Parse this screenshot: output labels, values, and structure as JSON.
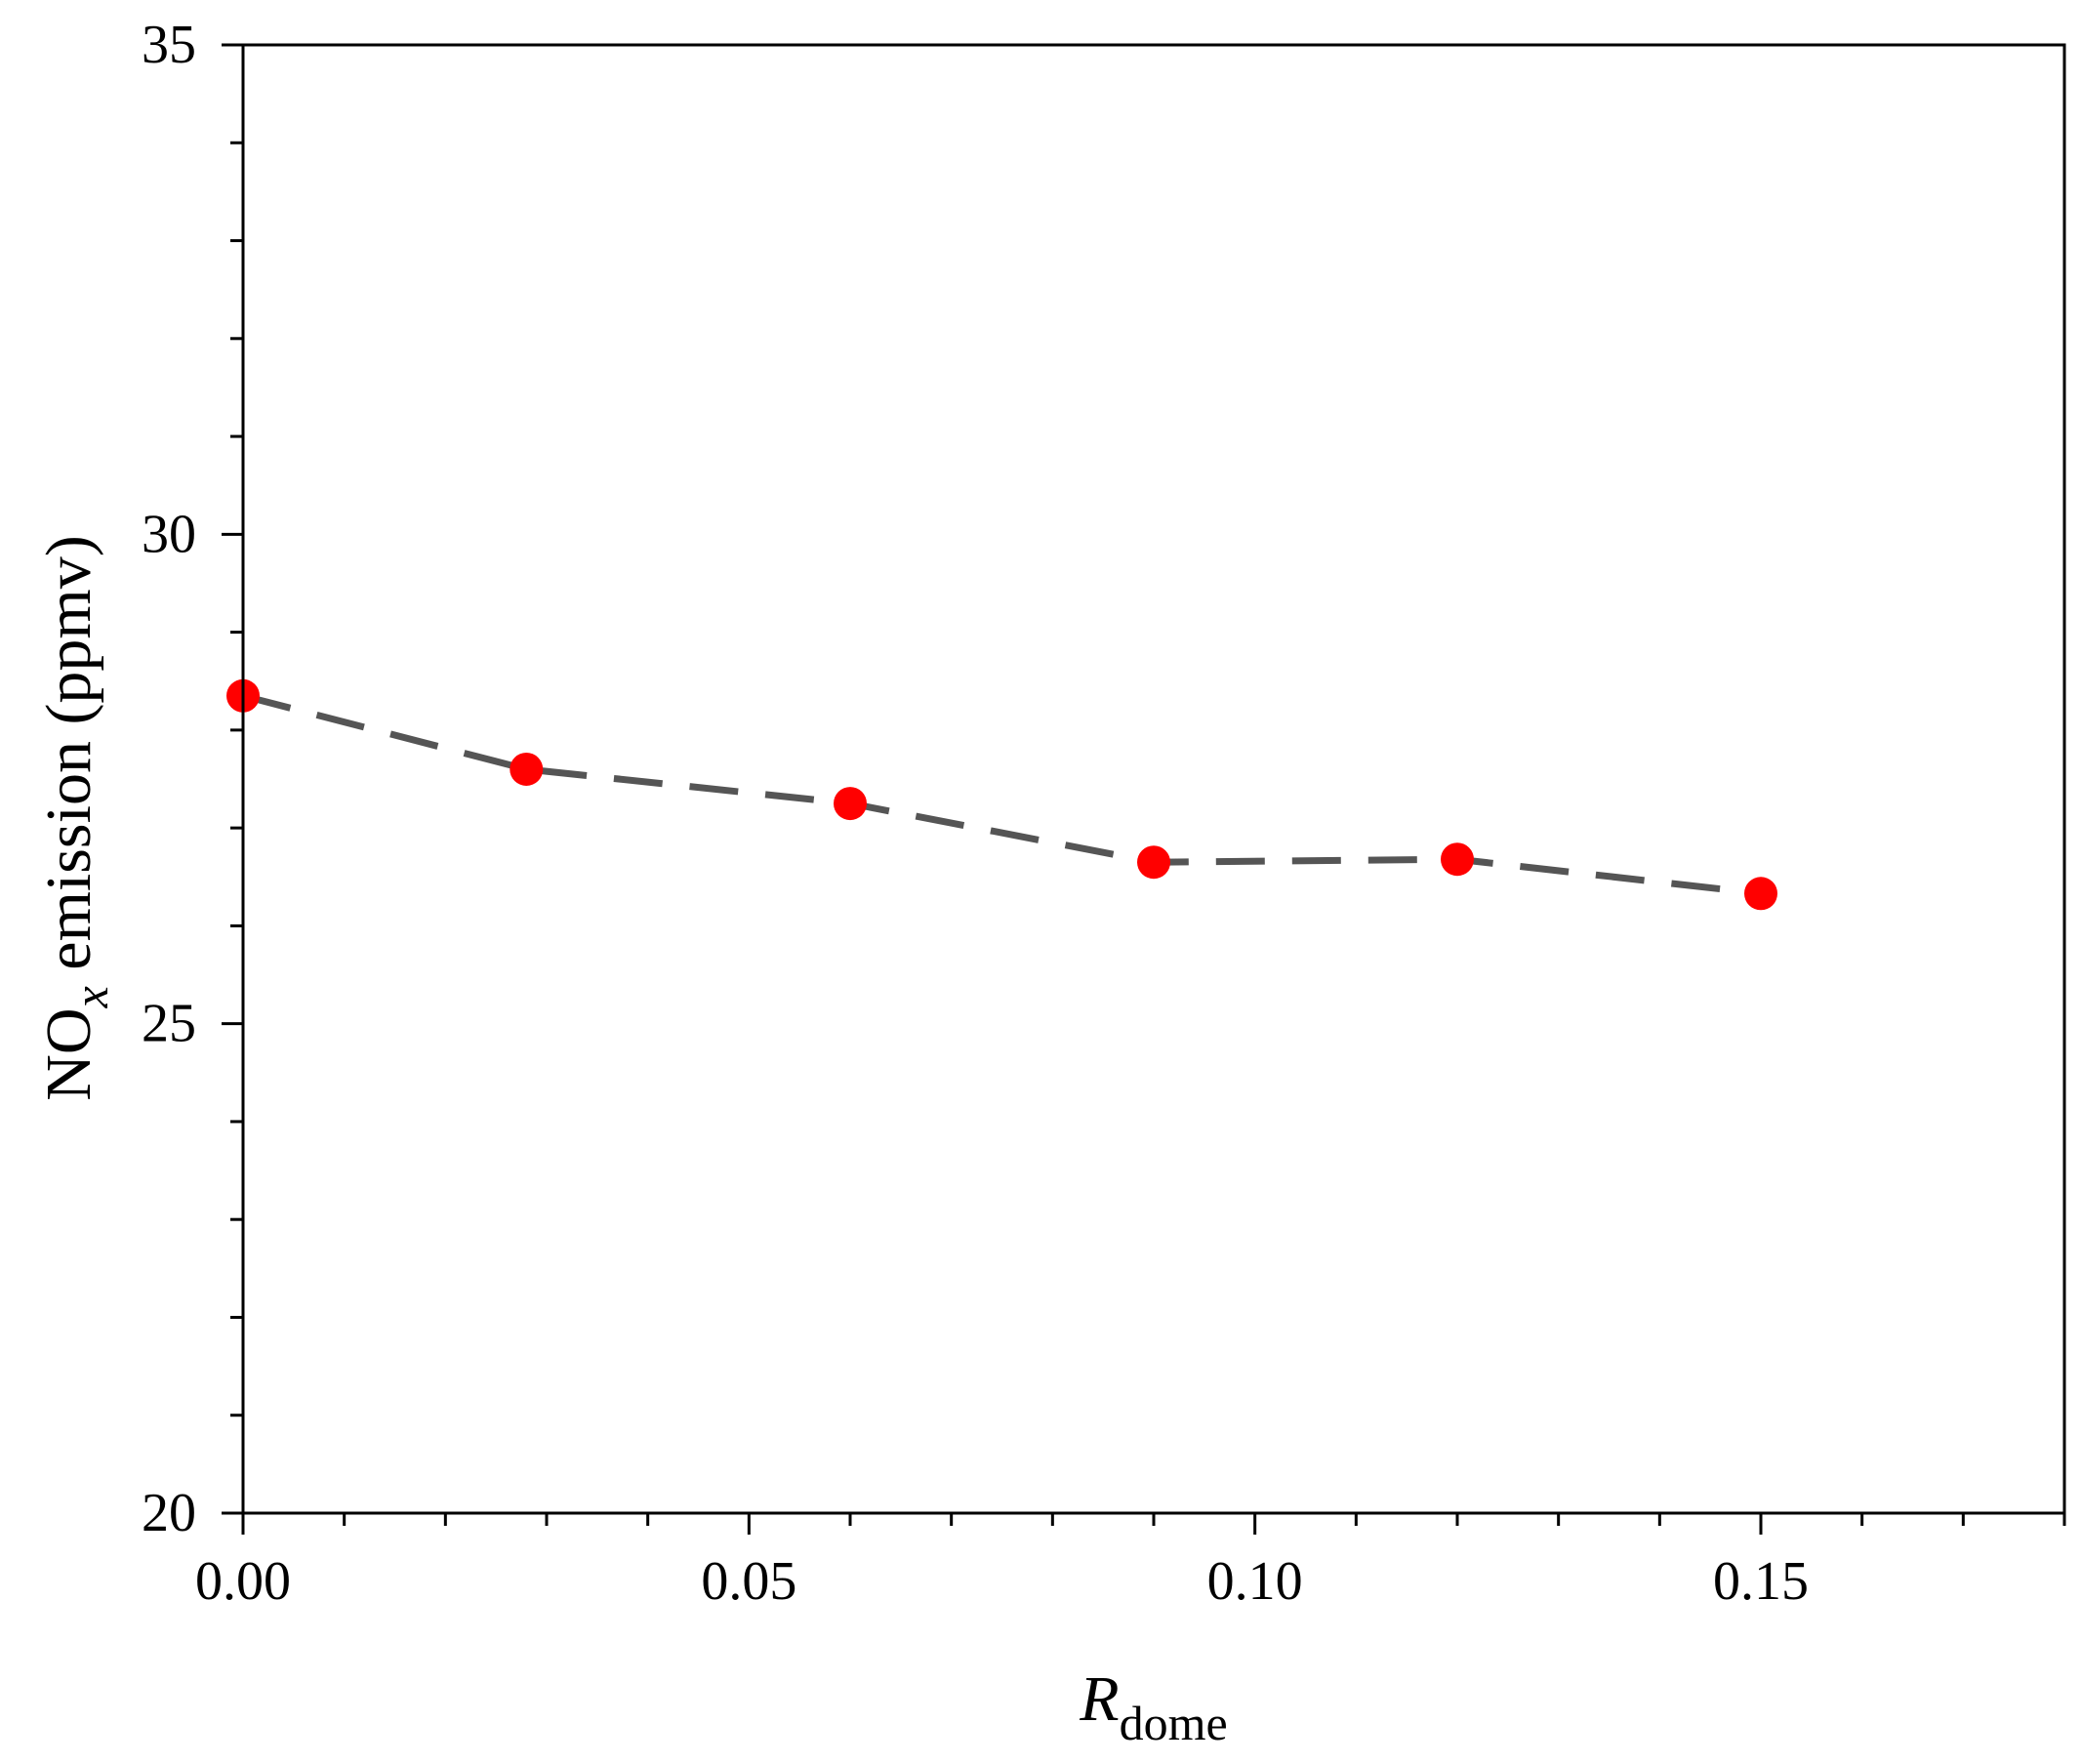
{
  "chart_data": {
    "type": "scatter",
    "title": "",
    "xlabel": {
      "main": "R",
      "sub": "dome"
    },
    "ylabel": {
      "prefix": "NO",
      "sub": "x",
      "suffix": " emission (ppmv)"
    },
    "xlim": [
      0,
      0.18
    ],
    "ylim": [
      20,
      35
    ],
    "x_major_ticks": [
      0,
      0.05,
      0.1,
      0.15
    ],
    "x_tick_labels": [
      "0.00",
      "0.05",
      "0.10",
      "0.15"
    ],
    "x_minor_step": 0.01,
    "y_major_ticks": [
      20,
      25,
      30,
      35
    ],
    "y_tick_labels": [
      "20",
      "25",
      "30",
      "35"
    ],
    "y_minor_step": 1,
    "grid": false,
    "legend": "none",
    "series": [
      {
        "x": [
          0.0,
          0.028,
          0.06,
          0.09,
          0.12,
          0.15
        ],
        "y": [
          28.35,
          27.6,
          27.25,
          26.65,
          26.68,
          26.33
        ],
        "marker_color": "#ff0000",
        "line_color": "#555555",
        "line_style": "dashed"
      }
    ]
  }
}
